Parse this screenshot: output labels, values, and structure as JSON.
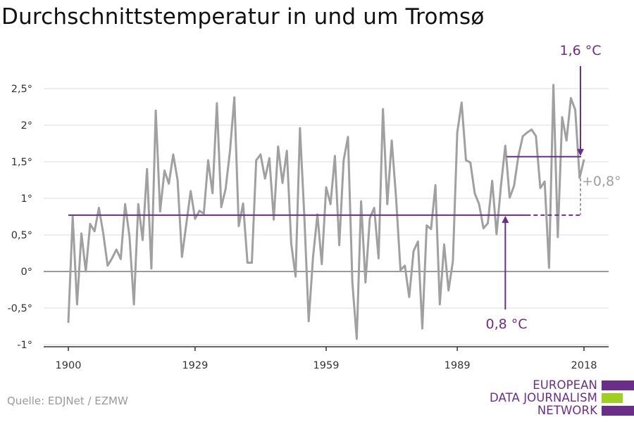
{
  "title": "Durchschnittstemperatur in und um Tromsø",
  "source": "Quelle: EDJNet / EZMW",
  "logo": {
    "lines": [
      "EUROPEAN",
      "DATA JOURNALISM",
      "NETWORK"
    ],
    "colors": {
      "text": "#6b2d8a",
      "bar_purple": "#6b2d8a",
      "bar_green": "#9ed11f"
    }
  },
  "colors": {
    "series": "#a0a0a0",
    "mean": "#6b2d8a",
    "grid": "#dcdcdc",
    "zero": "#9a9a9a",
    "axis": "#333333",
    "tick_text": "#333333"
  },
  "chart_data": {
    "type": "line",
    "title": "Durchschnittstemperatur in und um Tromsø",
    "xlabel": "",
    "ylabel": "",
    "xlim": [
      1900,
      2018
    ],
    "ylim": [
      -1,
      2.5
    ],
    "x_ticks": [
      1900,
      1929,
      1959,
      1989,
      2018
    ],
    "x_tick_labels": [
      "1900",
      "1929",
      "1959",
      "1989",
      "2018"
    ],
    "y_ticks": [
      -1,
      -0.5,
      0,
      0.5,
      1,
      1.5,
      2,
      2.5
    ],
    "y_tick_labels": [
      "-1°",
      "-0,5°",
      "0°",
      "0,5°",
      "1°",
      "1,5°",
      "2°",
      "2,5°"
    ],
    "grid": true,
    "x": [
      1900,
      1901,
      1902,
      1903,
      1904,
      1905,
      1906,
      1907,
      1908,
      1909,
      1910,
      1911,
      1912,
      1913,
      1914,
      1915,
      1916,
      1917,
      1918,
      1919,
      1920,
      1921,
      1922,
      1923,
      1924,
      1925,
      1926,
      1927,
      1928,
      1929,
      1930,
      1931,
      1932,
      1933,
      1934,
      1935,
      1936,
      1937,
      1938,
      1939,
      1940,
      1941,
      1942,
      1943,
      1944,
      1945,
      1946,
      1947,
      1948,
      1949,
      1950,
      1951,
      1952,
      1953,
      1954,
      1955,
      1956,
      1957,
      1958,
      1959,
      1960,
      1961,
      1962,
      1963,
      1964,
      1965,
      1966,
      1967,
      1968,
      1969,
      1970,
      1971,
      1972,
      1973,
      1974,
      1975,
      1976,
      1977,
      1978,
      1979,
      1980,
      1981,
      1982,
      1983,
      1984,
      1985,
      1986,
      1987,
      1988,
      1989,
      1990,
      1991,
      1992,
      1993,
      1994,
      1995,
      1996,
      1997,
      1998,
      1999,
      2000,
      2001,
      2002,
      2003,
      2004,
      2005,
      2006,
      2007,
      2008,
      2009,
      2010,
      2011,
      2012,
      2013,
      2014,
      2015,
      2016,
      2017,
      2018
    ],
    "values": [
      -0.7,
      0.75,
      -0.45,
      0.52,
      0.0,
      0.65,
      0.55,
      0.87,
      0.52,
      0.08,
      0.18,
      0.3,
      0.17,
      0.92,
      0.48,
      -0.45,
      0.92,
      0.43,
      1.4,
      0.04,
      2.2,
      0.82,
      1.38,
      1.2,
      1.6,
      1.25,
      0.2,
      0.65,
      1.1,
      0.72,
      0.83,
      0.79,
      1.52,
      1.07,
      2.3,
      0.88,
      1.13,
      1.65,
      2.38,
      0.62,
      0.93,
      0.12,
      0.12,
      1.52,
      1.6,
      1.27,
      1.55,
      0.71,
      1.71,
      1.21,
      1.65,
      0.38,
      -0.07,
      1.96,
      0.76,
      -0.68,
      0.2,
      0.78,
      0.1,
      1.15,
      0.92,
      1.58,
      0.36,
      1.52,
      1.84,
      -0.15,
      -0.92,
      0.96,
      -0.15,
      0.73,
      0.87,
      0.18,
      2.22,
      0.92,
      1.79,
      1.0,
      0.02,
      0.08,
      -0.35,
      0.28,
      0.41,
      -0.78,
      0.63,
      0.58,
      1.18,
      -0.45,
      0.37,
      -0.26,
      0.14,
      1.9,
      2.31,
      1.52,
      1.49,
      1.07,
      0.92,
      0.59,
      0.66,
      1.24,
      0.51,
      1.17,
      1.72,
      1.01,
      1.17,
      1.58,
      1.85,
      1.9,
      1.94,
      1.85,
      1.14,
      1.23,
      0.05,
      2.55,
      0.47,
      2.11,
      1.79,
      2.37,
      2.21,
      1.28,
      1.53
    ],
    "reference_lines": [
      {
        "label": "0,8 °C",
        "value": 0.77,
        "x_start": 1900,
        "x_end": 2000,
        "dashed_to": 2018
      },
      {
        "label": "1,6 °C",
        "value": 1.57,
        "x_start": 2000,
        "x_end": 2018
      }
    ],
    "annotations": [
      {
        "text": "1,6 °C",
        "x": 2018,
        "y": 1.57
      },
      {
        "text": "0,8 °C",
        "x": 2000,
        "y": 0.77
      },
      {
        "text": "+0,8°",
        "x": 2018,
        "y": 1.17
      }
    ]
  }
}
